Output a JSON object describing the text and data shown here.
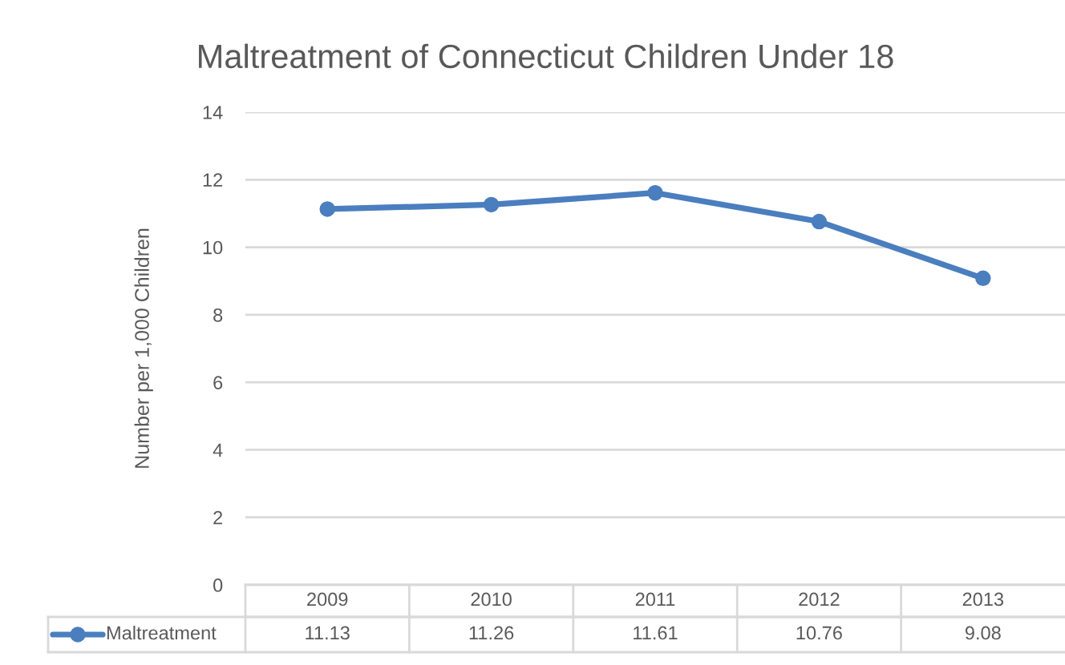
{
  "chart_data": {
    "type": "line",
    "title": "Maltreatment of Connecticut Children Under 18",
    "ylabel": "Number per 1,000 Children",
    "categories": [
      "2009",
      "2010",
      "2011",
      "2012",
      "2013"
    ],
    "series": [
      {
        "name": "Maltreatment",
        "color": "#4a7ebf",
        "values": [
          11.13,
          11.26,
          11.61,
          10.76,
          9.08
        ]
      }
    ],
    "ylim": [
      0,
      14
    ],
    "yticks": [
      0,
      2,
      4,
      6,
      8,
      10,
      12,
      14
    ],
    "grid": "y",
    "marker": "circle",
    "line_style": "solid",
    "data_labels": true,
    "legend": "bottom"
  }
}
